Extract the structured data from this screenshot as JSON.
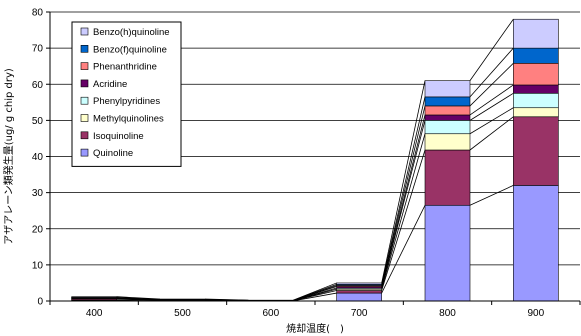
{
  "chart_data": {
    "type": "bar",
    "stacked": true,
    "categories": [
      "400",
      "500",
      "600",
      "700",
      "800",
      "900"
    ],
    "series": [
      {
        "name": "Quinoline",
        "color": "#9999FF",
        "values": [
          0.2,
          0.1,
          0.05,
          2.2,
          26.5,
          32.0
        ]
      },
      {
        "name": "Isoquinoline",
        "color": "#993366",
        "values": [
          0.3,
          0.1,
          0.05,
          0.7,
          15.3,
          19.0
        ]
      },
      {
        "name": "Methylquinolines",
        "color": "#FFFFCC",
        "values": [
          0.1,
          0.05,
          0.02,
          0.4,
          4.5,
          2.5
        ]
      },
      {
        "name": "Phenylpyridines",
        "color": "#CCFFFF",
        "values": [
          0.1,
          0.05,
          0.02,
          0.3,
          3.7,
          4.0
        ]
      },
      {
        "name": "Acridine",
        "color": "#660066",
        "values": [
          0.1,
          0.05,
          0.02,
          0.4,
          1.5,
          2.3
        ]
      },
      {
        "name": "Phenanthridine",
        "color": "#FF8080",
        "values": [
          0.1,
          0.05,
          0.02,
          0.3,
          2.5,
          6.0
        ]
      },
      {
        "name": "Benzo(f)quinoline",
        "color": "#0066CC",
        "values": [
          0.1,
          0.05,
          0.02,
          0.3,
          2.5,
          4.2
        ]
      },
      {
        "name": "Benzo(h)quinoline",
        "color": "#CCCCFF",
        "values": [
          0.2,
          0.1,
          0.03,
          0.4,
          4.5,
          8.0
        ]
      }
    ],
    "xlabel": "焼却温度( )",
    "ylabel": "アザアレーン類発生量(ug/ g chip dry)",
    "ylim": [
      0,
      80
    ],
    "yticks": [
      0,
      10,
      20,
      30,
      40,
      50,
      60,
      70,
      80
    ],
    "grid": true,
    "legend_position": "top-left",
    "series_lines": true
  }
}
